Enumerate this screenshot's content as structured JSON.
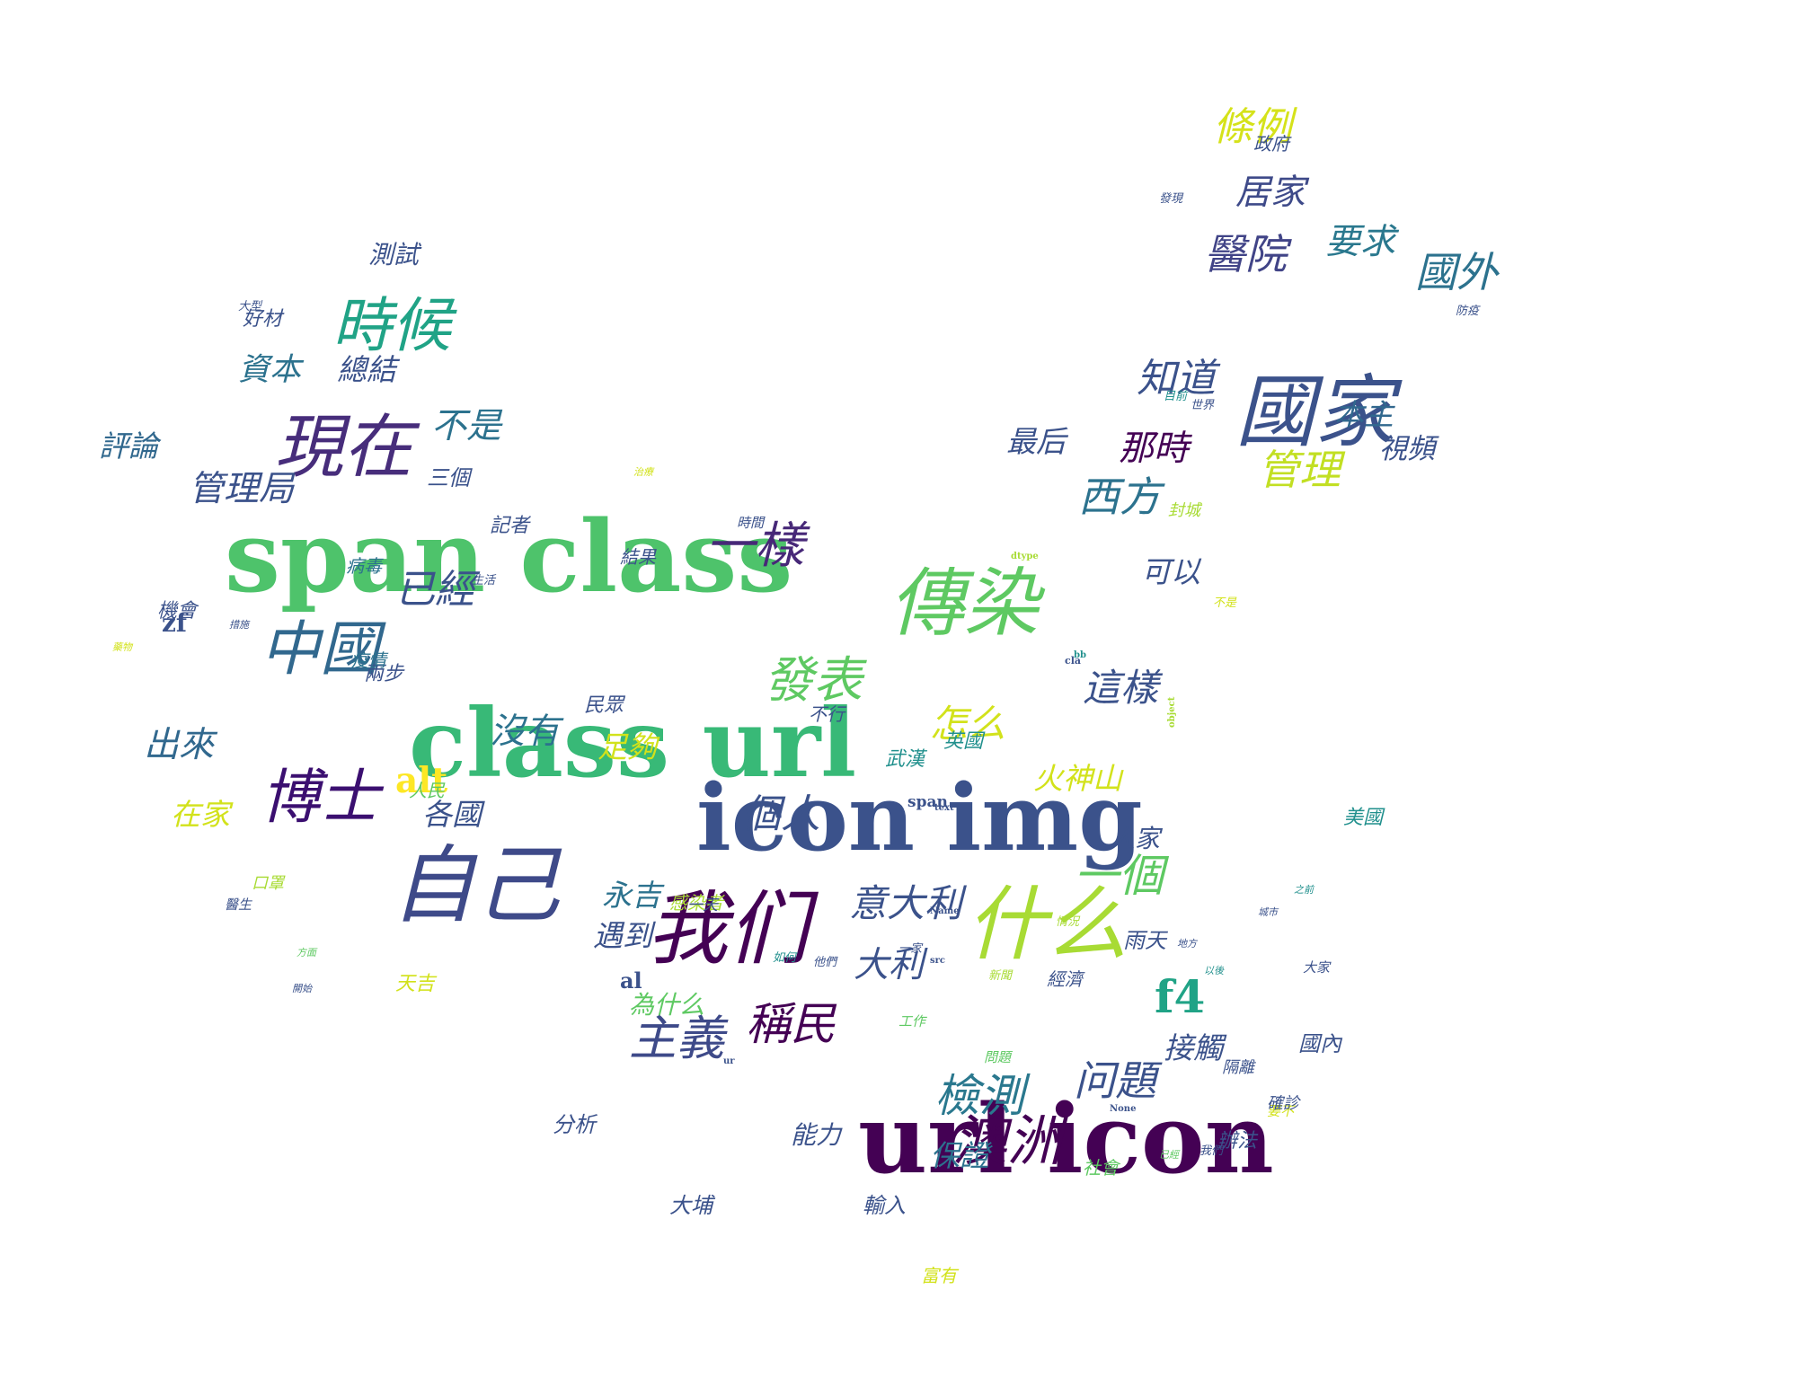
{
  "colors": {
    "background": "#ffffff",
    "palette": "viridis",
    "purple": "#440154",
    "indigo": "#3b528b",
    "teal": "#21908d",
    "green": "#5ec962",
    "yellow": "#fde725"
  },
  "words": [
    {
      "text": "span class",
      "size": 1.0,
      "color": "#4ec36b"
    },
    {
      "text": "class url",
      "size": 0.95,
      "color": "#38b977"
    },
    {
      "text": "icon img",
      "size": 0.93,
      "color": "#3b528b"
    },
    {
      "text": "url icon",
      "size": 0.96,
      "color": "#440154"
    },
    {
      "text": "國家",
      "size": 0.8,
      "color": "#3b528b"
    },
    {
      "text": "什么",
      "size": 0.82,
      "color": "#a8db34"
    },
    {
      "text": "自己",
      "size": 0.85,
      "color": "#3e4a89"
    },
    {
      "text": "我们",
      "size": 0.82,
      "color": "#440154"
    },
    {
      "text": "現在",
      "size": 0.7,
      "color": "#472d7b"
    },
    {
      "text": "時候",
      "size": 0.6,
      "color": "#20a386"
    },
    {
      "text": "博士",
      "size": 0.6,
      "color": "#3b0f70"
    },
    {
      "text": "中國",
      "size": 0.6,
      "color": "#31688e"
    },
    {
      "text": "alt",
      "size": 0.35,
      "color": "#fde725"
    },
    {
      "text": "f4",
      "size": 0.45,
      "color": "#20a386"
    },
    {
      "text": "zf",
      "size": 0.25,
      "color": "#3b528b"
    },
    {
      "text": "al",
      "size": 0.22,
      "color": "#3b528b"
    },
    {
      "text": "span",
      "size": 0.15,
      "color": "#3b528b"
    },
    {
      "text": "cla",
      "size": 0.1,
      "color": "#3b528b"
    },
    {
      "text": "bb",
      "size": 0.09,
      "color": "#21908d"
    },
    {
      "text": "text",
      "size": 0.08,
      "color": "#3b528b"
    },
    {
      "text": "Name",
      "size": 0.08,
      "color": "#3b528b"
    },
    {
      "text": "src",
      "size": 0.08,
      "color": "#3b528b"
    },
    {
      "text": "None",
      "size": 0.08,
      "color": "#3b528b"
    },
    {
      "text": "dtype",
      "size": 0.07,
      "color": "#a8db34"
    },
    {
      "text": "object",
      "size": 0.07,
      "color": "#a8db34"
    },
    {
      "text": "ur",
      "size": 0.07,
      "color": "#3b528b"
    },
    {
      "text": "條例",
      "size": 0.4,
      "color": "#d5e21a"
    },
    {
      "text": "居家",
      "size": 0.35,
      "color": "#3e4a89"
    },
    {
      "text": "醫院",
      "size": 0.42,
      "color": "#414487"
    },
    {
      "text": "要求",
      "size": 0.35,
      "color": "#2a788e"
    },
    {
      "text": "國外",
      "size": 0.42,
      "color": "#2c728e"
    },
    {
      "text": "知道",
      "size": 0.4,
      "color": "#3b528b"
    },
    {
      "text": "本主",
      "size": 0.3,
      "color": "#31688e"
    },
    {
      "text": "視頻",
      "size": 0.28,
      "color": "#3b528b"
    },
    {
      "text": "管理",
      "size": 0.42,
      "color": "#c2df23"
    },
    {
      "text": "西方",
      "size": 0.42,
      "color": "#2c728e"
    },
    {
      "text": "最后",
      "size": 0.3,
      "color": "#3b528b"
    },
    {
      "text": "那時",
      "size": 0.35,
      "color": "#440154"
    },
    {
      "text": "一樣",
      "size": 0.5,
      "color": "#472878"
    },
    {
      "text": "傳染",
      "size": 0.75,
      "color": "#5ec962"
    },
    {
      "text": "發表",
      "size": 0.5,
      "color": "#5ec962"
    },
    {
      "text": "怎么",
      "size": 0.38,
      "color": "#d2e21b"
    },
    {
      "text": "這樣",
      "size": 0.38,
      "color": "#3b528b"
    },
    {
      "text": "一個",
      "size": 0.45,
      "color": "#5ec962"
    },
    {
      "text": "问題",
      "size": 0.42,
      "color": "#3b528b"
    },
    {
      "text": "沒有",
      "size": 0.35,
      "color": "#2c728e"
    },
    {
      "text": "出來",
      "size": 0.35,
      "color": "#31688e"
    },
    {
      "text": "個人",
      "size": 0.4,
      "color": "#3b528b"
    },
    {
      "text": "稱民",
      "size": 0.45,
      "color": "#440154"
    },
    {
      "text": "主義",
      "size": 0.48,
      "color": "#3e4a89"
    },
    {
      "text": "檢測",
      "size": 0.45,
      "color": "#2a788e"
    },
    {
      "text": "澳洲",
      "size": 0.55,
      "color": "#440154"
    },
    {
      "text": "意大利",
      "size": 0.38,
      "color": "#3b528b"
    },
    {
      "text": "大利",
      "size": 0.35,
      "color": "#3b528b"
    },
    {
      "text": "資本",
      "size": 0.32,
      "color": "#2c728e"
    },
    {
      "text": "評論",
      "size": 0.3,
      "color": "#31688e"
    },
    {
      "text": "管理局",
      "size": 0.35,
      "color": "#3b528b"
    },
    {
      "text": "不是",
      "size": 0.35,
      "color": "#2c728e"
    },
    {
      "text": "已經",
      "size": 0.4,
      "color": "#3b528b"
    },
    {
      "text": "測試",
      "size": 0.25,
      "color": "#3b528b"
    },
    {
      "text": "各國",
      "size": 0.3,
      "color": "#3b528b"
    },
    {
      "text": "三個",
      "size": 0.22,
      "color": "#3b528b"
    },
    {
      "text": "感染者",
      "size": 0.18,
      "color": "#a8db34"
    },
    {
      "text": "雨天",
      "size": 0.22,
      "color": "#3b528b"
    },
    {
      "text": "好材",
      "size": 0.2,
      "color": "#3b528b"
    },
    {
      "text": "大型",
      "size": 0.12,
      "color": "#3b528b"
    },
    {
      "text": "總結",
      "size": 0.3,
      "color": "#3b528b"
    },
    {
      "text": "機會",
      "size": 0.2,
      "color": "#3b528b"
    },
    {
      "text": "火神山",
      "size": 0.3,
      "color": "#d2e21b"
    },
    {
      "text": "一天",
      "size": 0.15,
      "color": "#3b528b"
    },
    {
      "text": "兩步",
      "size": 0.2,
      "color": "#3b528b"
    },
    {
      "text": "在家",
      "size": 0.3,
      "color": "#d2e21b"
    },
    {
      "text": "民眾",
      "size": 0.2,
      "color": "#3b528b"
    },
    {
      "text": "記者",
      "size": 0.2,
      "color": "#3b528b"
    },
    {
      "text": "可以",
      "size": 0.3,
      "color": "#3b528b"
    },
    {
      "text": "人家",
      "size": 0.25,
      "color": "#3b528b"
    },
    {
      "text": "接觸",
      "size": 0.3,
      "color": "#3b528b"
    },
    {
      "text": "結果",
      "size": 0.18,
      "color": "#3b528b"
    },
    {
      "text": "天吉",
      "size": 0.2,
      "color": "#d2e21b"
    },
    {
      "text": "富有",
      "size": 0.18,
      "color": "#d2e21b"
    },
    {
      "text": "要不",
      "size": 0.14,
      "color": "#d2e21b"
    },
    {
      "text": "不是",
      "size": 0.12,
      "color": "#d2e21b"
    },
    {
      "text": "一家",
      "size": 0.12,
      "color": "#3b528b"
    },
    {
      "text": "輸入",
      "size": 0.22,
      "color": "#3b528b"
    },
    {
      "text": "大埔",
      "size": 0.22,
      "color": "#3b528b"
    },
    {
      "text": "不行",
      "size": 0.18,
      "color": "#3b528b"
    },
    {
      "text": "為什么",
      "size": 0.25,
      "color": "#5ec962"
    },
    {
      "text": "永吉",
      "size": 0.3,
      "color": "#2c728e"
    },
    {
      "text": "遇到",
      "size": 0.3,
      "color": "#3b528b"
    },
    {
      "text": "足夠",
      "size": 0.3,
      "color": "#d2e21b"
    },
    {
      "text": "保證",
      "size": 0.3,
      "color": "#2c728e"
    },
    {
      "text": "能力",
      "size": 0.25,
      "color": "#3b528b"
    },
    {
      "text": "分析",
      "size": 0.22,
      "color": "#3b528b"
    },
    {
      "text": "國內",
      "size": 0.22,
      "color": "#3b528b"
    },
    {
      "text": "辦法",
      "size": 0.2,
      "color": "#3b528b"
    },
    {
      "text": "政府",
      "size": 0.18,
      "color": "#3b528b"
    },
    {
      "text": "經濟",
      "size": 0.18,
      "color": "#3b528b"
    },
    {
      "text": "武漢",
      "size": 0.2,
      "color": "#21908d"
    },
    {
      "text": "英國",
      "size": 0.2,
      "color": "#21908d"
    },
    {
      "text": "美國",
      "size": 0.2,
      "color": "#21908d"
    },
    {
      "text": "人民",
      "size": 0.18,
      "color": "#5ec962"
    },
    {
      "text": "社會",
      "size": 0.18,
      "color": "#5ec962"
    },
    {
      "text": "病毒",
      "size": 0.18,
      "color": "#2c728e"
    },
    {
      "text": "疫情",
      "size": 0.18,
      "color": "#2c728e"
    },
    {
      "text": "口罩",
      "size": 0.16,
      "color": "#a8db34"
    },
    {
      "text": "封城",
      "size": 0.16,
      "color": "#a8db34"
    },
    {
      "text": "隔離",
      "size": 0.16,
      "color": "#3b528b"
    },
    {
      "text": "確診",
      "size": 0.16,
      "color": "#3b528b"
    },
    {
      "text": "醫生",
      "size": 0.14,
      "color": "#3b528b"
    },
    {
      "text": "工作",
      "size": 0.14,
      "color": "#5ec962"
    },
    {
      "text": "問題",
      "size": 0.14,
      "color": "#5ec962"
    },
    {
      "text": "大家",
      "size": 0.14,
      "color": "#3b528b"
    },
    {
      "text": "時間",
      "size": 0.14,
      "color": "#3b528b"
    },
    {
      "text": "發現",
      "size": 0.12,
      "color": "#3b528b"
    },
    {
      "text": "防疫",
      "size": 0.12,
      "color": "#3b528b"
    },
    {
      "text": "情況",
      "size": 0.12,
      "color": "#a8db34"
    },
    {
      "text": "新聞",
      "size": 0.12,
      "color": "#a8db34"
    },
    {
      "text": "生活",
      "size": 0.12,
      "color": "#3b528b"
    },
    {
      "text": "世界",
      "size": 0.12,
      "color": "#3b528b"
    },
    {
      "text": "目前",
      "size": 0.12,
      "color": "#21908d"
    },
    {
      "text": "如何",
      "size": 0.12,
      "color": "#21908d"
    },
    {
      "text": "他們",
      "size": 0.12,
      "color": "#3b528b"
    },
    {
      "text": "我們",
      "size": 0.12,
      "color": "#3b528b"
    },
    {
      "text": "已經",
      "size": 0.1,
      "color": "#5ec962"
    },
    {
      "text": "方面",
      "size": 0.1,
      "color": "#5ec962"
    },
    {
      "text": "開始",
      "size": 0.1,
      "color": "#3b528b"
    },
    {
      "text": "措施",
      "size": 0.1,
      "color": "#3b528b"
    },
    {
      "text": "治療",
      "size": 0.1,
      "color": "#d2e21b"
    },
    {
      "text": "藥物",
      "size": 0.1,
      "color": "#d2e21b"
    },
    {
      "text": "城市",
      "size": 0.1,
      "color": "#3b528b"
    },
    {
      "text": "地方",
      "size": 0.1,
      "color": "#3b528b"
    },
    {
      "text": "以後",
      "size": 0.1,
      "color": "#21908d"
    },
    {
      "text": "之前",
      "size": 0.1,
      "color": "#21908d"
    }
  ]
}
